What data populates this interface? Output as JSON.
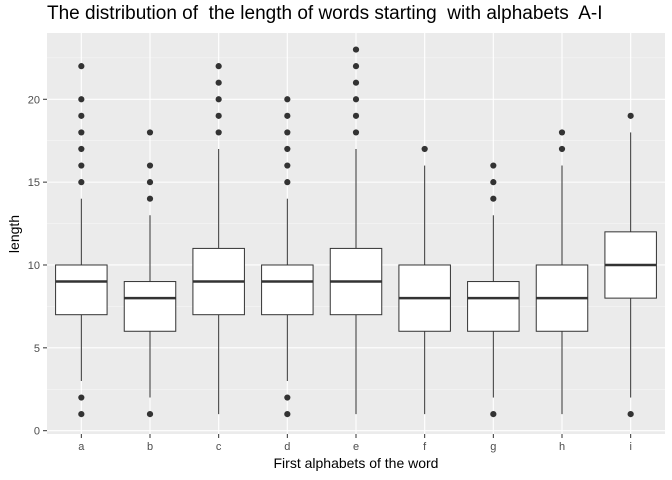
{
  "chart_data": {
    "type": "box",
    "title": "The distribution of  the length of words starting  with alphabets  A-I",
    "xlabel": "First alphabets of the word",
    "ylabel": "length",
    "ylim": [
      -0.2,
      24.0
    ],
    "yticks": [
      0,
      5,
      10,
      15,
      20
    ],
    "grid": true,
    "categories": [
      "a",
      "b",
      "c",
      "d",
      "e",
      "f",
      "g",
      "h",
      "i"
    ],
    "boxes": [
      {
        "category": "a",
        "whisker_low": 3,
        "q1": 7,
        "median": 9,
        "q3": 10,
        "whisker_high": 14,
        "outliers": [
          1,
          2,
          15,
          16,
          17,
          18,
          19,
          20,
          22
        ]
      },
      {
        "category": "b",
        "whisker_low": 2,
        "q1": 6,
        "median": 8,
        "q3": 9,
        "whisker_high": 13,
        "outliers": [
          1,
          14,
          15,
          16,
          18
        ]
      },
      {
        "category": "c",
        "whisker_low": 1,
        "q1": 7,
        "median": 9,
        "q3": 11,
        "whisker_high": 17,
        "outliers": [
          18,
          19,
          20,
          21,
          22
        ]
      },
      {
        "category": "d",
        "whisker_low": 3,
        "q1": 7,
        "median": 9,
        "q3": 10,
        "whisker_high": 14,
        "outliers": [
          1,
          2,
          15,
          16,
          17,
          18,
          19,
          20
        ]
      },
      {
        "category": "e",
        "whisker_low": 1,
        "q1": 7,
        "median": 9,
        "q3": 11,
        "whisker_high": 17,
        "outliers": [
          18,
          19,
          20,
          21,
          22,
          23
        ]
      },
      {
        "category": "f",
        "whisker_low": 1,
        "q1": 6,
        "median": 8,
        "q3": 10,
        "whisker_high": 16,
        "outliers": [
          17
        ]
      },
      {
        "category": "g",
        "whisker_low": 2,
        "q1": 6,
        "median": 8,
        "q3": 9,
        "whisker_high": 13,
        "outliers": [
          1,
          14,
          15,
          16
        ]
      },
      {
        "category": "h",
        "whisker_low": 1,
        "q1": 6,
        "median": 8,
        "q3": 10,
        "whisker_high": 16,
        "outliers": [
          17,
          18
        ]
      },
      {
        "category": "i",
        "whisker_low": 2,
        "q1": 8,
        "median": 10,
        "q3": 12,
        "whisker_high": 18,
        "outliers": [
          1,
          19
        ]
      }
    ],
    "colors": {
      "panel_bg": "#ebebeb",
      "grid_major": "#ffffff",
      "box_fill": "#ffffff",
      "box_line": "#333333",
      "outlier": "#333333"
    }
  }
}
